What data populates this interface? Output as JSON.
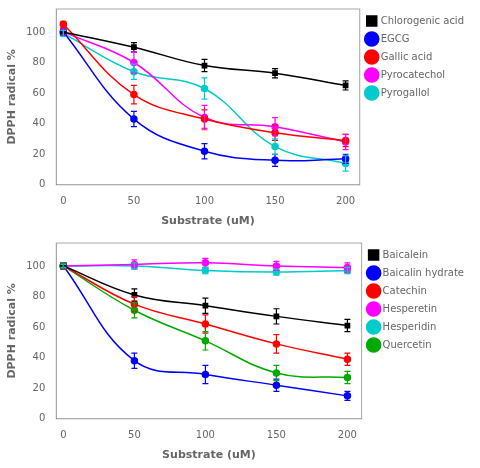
{
  "chart_data": [
    {
      "type": "line",
      "xlabel": "Substrate (uM)",
      "ylabel": "DPPH radical %",
      "x": [
        0,
        50,
        100,
        150,
        200
      ],
      "xlim": [
        -5,
        210
      ],
      "xticks": [
        0,
        50,
        100,
        150,
        200
      ],
      "ylim": [
        0,
        115
      ],
      "yticks": [
        0,
        20,
        40,
        60,
        80,
        100
      ],
      "grid": false,
      "legend": "right",
      "series": [
        {
          "name": "Chlorogenic acid",
          "color": "#000000",
          "marker": "square",
          "values": [
            100,
            90,
            78,
            73,
            65
          ],
          "yerr": [
            2,
            3,
            4,
            3,
            3
          ]
        },
        {
          "name": "EGCG",
          "color": "#0000ff",
          "marker": "circle",
          "values": [
            100,
            43,
            22,
            16,
            17
          ],
          "yerr": [
            2,
            5,
            5,
            4,
            3
          ]
        },
        {
          "name": "Gallic acid",
          "color": "#ff0000",
          "marker": "circle",
          "values": [
            105,
            59,
            43,
            34,
            29
          ],
          "yerr": [
            2,
            6,
            6,
            5,
            4
          ]
        },
        {
          "name": "Pyrocatechol",
          "color": "#ff00ff",
          "marker": "circle",
          "values": [
            100,
            80,
            44,
            38,
            28
          ],
          "yerr": [
            2,
            7,
            8,
            6,
            5
          ]
        },
        {
          "name": "Pyrogallol",
          "color": "#00cccc",
          "marker": "circle",
          "values": [
            99,
            74,
            63,
            25,
            14
          ],
          "yerr": [
            2,
            5,
            7,
            5,
            5
          ]
        }
      ]
    },
    {
      "type": "line",
      "xlabel": "Substrate (uM)",
      "ylabel": "DPPH radical %",
      "x": [
        0,
        50,
        100,
        150,
        200
      ],
      "xlim": [
        -5,
        210
      ],
      "xticks": [
        0,
        50,
        100,
        150,
        200
      ],
      "ylim": [
        0,
        115
      ],
      "yticks": [
        0,
        20,
        40,
        60,
        80,
        100
      ],
      "grid": false,
      "legend": "right",
      "series": [
        {
          "name": "Baicalein",
          "color": "#000000",
          "marker": "square",
          "values": [
            100,
            81,
            74,
            67,
            61
          ],
          "yerr": [
            2,
            4,
            5,
            5,
            4
          ]
        },
        {
          "name": "Baicalin hydrate",
          "color": "#0000ff",
          "marker": "circle",
          "values": [
            100,
            38,
            29,
            22,
            15
          ],
          "yerr": [
            2,
            5,
            6,
            4,
            3
          ]
        },
        {
          "name": "Catechin",
          "color": "#ff0000",
          "marker": "circle",
          "values": [
            100,
            75,
            62,
            49,
            39
          ],
          "yerr": [
            2,
            5,
            6,
            6,
            4
          ]
        },
        {
          "name": "Hesperetin",
          "color": "#ff00ff",
          "marker": "circle",
          "values": [
            100,
            101,
            102,
            100,
            99
          ],
          "yerr": [
            2,
            3,
            3,
            3,
            3
          ]
        },
        {
          "name": "Hesperidin",
          "color": "#00cccc",
          "marker": "circle",
          "values": [
            100,
            100,
            97,
            96,
            97
          ],
          "yerr": [
            1,
            2,
            2,
            2,
            2
          ]
        },
        {
          "name": "Quercetin",
          "color": "#00aa00",
          "marker": "circle",
          "values": [
            100,
            71,
            51,
            30,
            27
          ],
          "yerr": [
            2,
            5,
            6,
            5,
            4
          ]
        }
      ]
    }
  ]
}
